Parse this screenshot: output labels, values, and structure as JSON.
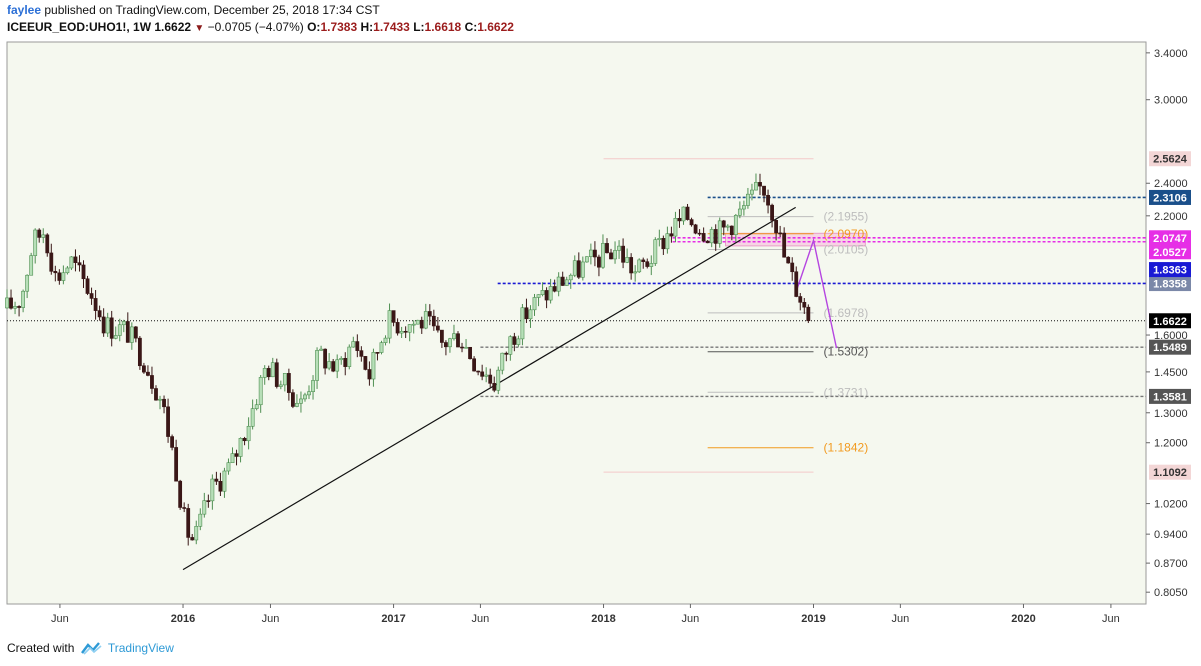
{
  "header": {
    "user": "faylee",
    "published": "published on TradingView.com, December 25, 2018 17:34 CST",
    "symbol": "ICEEUR_EOD:UHO1!",
    "timeframe": "1W",
    "last": "1.6622",
    "change": "−0.0705 (−4.07%)",
    "o_label": "O:",
    "o": "1.7383",
    "h_label": "H:",
    "h": "1.7433",
    "l_label": "L:",
    "l": "1.6618",
    "c_label": "C:",
    "c": "1.6622"
  },
  "footer": {
    "created_with": "Created with",
    "brand": "TradingView"
  },
  "colors": {
    "plot_bg": "#f5f8ef",
    "bull": "#b7dfb8",
    "bear": "#3a1717",
    "navy_level": "#1a4f8a",
    "blue_level": "#1a1ad4",
    "magenta_level": "#e62ee6",
    "gray_level": "#777777",
    "fib_gray": "#bdbdbd",
    "fib_orange": "#f29a1f",
    "projection": "#b545e0",
    "zone": "#f7c6e0"
  },
  "chart_data": {
    "type": "candlestick",
    "scale": "log",
    "ylim": [
      0.78,
      3.5
    ],
    "y_ticks": [
      "3.4000",
      "3.0000",
      "2.4000",
      "2.2000",
      "1.6000",
      "1.4500",
      "1.3000",
      "1.2000",
      "1.0200",
      "0.9400",
      "0.8700",
      "0.8050"
    ],
    "x_ticks": [
      "Jun",
      "2016",
      "Jun",
      "2017",
      "Jun",
      "2018",
      "Jun",
      "2019",
      "Jun",
      "2020",
      "Jun"
    ],
    "x_range": [
      "2015-03",
      "2020-08"
    ],
    "last_price": 1.6622,
    "price_labels": [
      {
        "value": 2.5624,
        "text": "2.5624",
        "style": "fib-ext"
      },
      {
        "value": 2.3106,
        "text": "2.3106",
        "style": "navy"
      },
      {
        "value": 2.0747,
        "text": "2.0747",
        "style": "magenta"
      },
      {
        "value": 2.0527,
        "text": "2.0527",
        "style": "magenta"
      },
      {
        "value": 1.8358,
        "text": "1.8358",
        "style": "slate"
      },
      {
        "value": 1.8363,
        "text": "1.8363",
        "style": "blue"
      },
      {
        "value": 1.6622,
        "text": "1.6622",
        "style": "last"
      },
      {
        "value": 1.5489,
        "text": "1.5489",
        "style": "gray"
      },
      {
        "value": 1.3581,
        "text": "1.3581",
        "style": "gray"
      },
      {
        "value": 1.1092,
        "text": "1.1092",
        "style": "fib-ext"
      }
    ],
    "horizontal_levels": [
      {
        "value": 2.3106,
        "from": "2018-07",
        "style": "navy-dotted"
      },
      {
        "value": 2.0747,
        "from": "2018-05",
        "style": "magenta-dotted"
      },
      {
        "value": 2.0527,
        "from": "2018-05",
        "style": "magenta-dotted"
      },
      {
        "value": 1.8363,
        "from": "2017-07",
        "style": "blue-dotted"
      },
      {
        "value": 1.6622,
        "from": "2015-03",
        "style": "black-dotted"
      },
      {
        "value": 1.5489,
        "from": "2017-06",
        "style": "gray-dotted"
      },
      {
        "value": 1.3581,
        "from": "2017-06",
        "style": "gray-dotted"
      }
    ],
    "fib_levels": [
      {
        "value": 2.5624,
        "label": "",
        "color": "#f4c9c9"
      },
      {
        "value": 2.1955,
        "label": "(2.1955)",
        "color": "#bdbdbd"
      },
      {
        "value": 2.097,
        "label": "(2.0970)",
        "color": "#f29a1f"
      },
      {
        "value": 2.0105,
        "label": "(2.0105)",
        "color": "#bdbdbd"
      },
      {
        "value": 1.6978,
        "label": "(1.6978)",
        "color": "#bdbdbd"
      },
      {
        "value": 1.5302,
        "label": "(1.5302)",
        "color": "#555555"
      },
      {
        "value": 1.3731,
        "label": "(1.3731)",
        "color": "#bdbdbd"
      },
      {
        "value": 1.1842,
        "label": "(1.1842)",
        "color": "#f29a1f"
      },
      {
        "value": 1.1092,
        "label": "",
        "color": "#f4c9c9"
      }
    ],
    "trendline": [
      [
        "2016-01-01",
        0.855
      ],
      [
        "2018-12-01",
        2.25
      ]
    ],
    "projection": [
      [
        "2018-12-01",
        1.79
      ],
      [
        "2019-01-01",
        2.06
      ],
      [
        "2019-02-10",
        1.545
      ]
    ],
    "zone": {
      "from": "2018-08-01",
      "to": "2019-04-01",
      "low": 2.03,
      "high": 2.1
    },
    "path": [
      [
        "2015-03-01",
        1.72
      ],
      [
        "2015-03-25",
        1.76
      ],
      [
        "2015-04-15",
        2.05
      ],
      [
        "2015-05-05",
        2.12
      ],
      [
        "2015-05-25",
        1.86
      ],
      [
        "2015-06-20",
        1.95
      ],
      [
        "2015-07-25",
        1.79
      ],
      [
        "2015-08-20",
        1.64
      ],
      [
        "2015-09-25",
        1.62
      ],
      [
        "2015-10-25",
        1.5
      ],
      [
        "2015-11-25",
        1.34
      ],
      [
        "2015-12-20",
        1.12
      ],
      [
        "2016-01-05",
        0.955
      ],
      [
        "2016-01-20",
        0.92
      ],
      [
        "2016-02-20",
        1.06
      ],
      [
        "2016-03-25",
        1.13
      ],
      [
        "2016-04-25",
        1.28
      ],
      [
        "2016-05-25",
        1.48
      ],
      [
        "2016-06-25",
        1.4
      ],
      [
        "2016-07-25",
        1.33
      ],
      [
        "2016-08-25",
        1.52
      ],
      [
        "2016-09-25",
        1.46
      ],
      [
        "2016-10-25",
        1.58
      ],
      [
        "2016-11-20",
        1.44
      ],
      [
        "2016-12-20",
        1.66
      ],
      [
        "2017-01-20",
        1.65
      ],
      [
        "2017-02-25",
        1.66
      ],
      [
        "2017-03-25",
        1.56
      ],
      [
        "2017-04-25",
        1.6
      ],
      [
        "2017-05-25",
        1.48
      ],
      [
        "2017-06-25",
        1.41
      ],
      [
        "2017-07-25",
        1.59
      ],
      [
        "2017-08-25",
        1.72
      ],
      [
        "2017-09-25",
        1.79
      ],
      [
        "2017-10-25",
        1.86
      ],
      [
        "2017-11-25",
        1.92
      ],
      [
        "2017-12-25",
        1.97
      ],
      [
        "2018-01-25",
        2.02
      ],
      [
        "2018-02-25",
        1.89
      ],
      [
        "2018-03-25",
        1.97
      ],
      [
        "2018-04-25",
        2.11
      ],
      [
        "2018-05-25",
        2.2
      ],
      [
        "2018-06-25",
        2.12
      ],
      [
        "2018-07-25",
        2.11
      ],
      [
        "2018-08-20",
        2.19
      ],
      [
        "2018-09-15",
        2.3
      ],
      [
        "2018-10-05",
        2.39
      ],
      [
        "2018-10-25",
        2.21
      ],
      [
        "2018-11-10",
        1.98
      ],
      [
        "2018-11-25",
        1.86
      ],
      [
        "2018-12-10",
        1.77
      ],
      [
        "2018-12-24",
        1.6622
      ]
    ]
  }
}
